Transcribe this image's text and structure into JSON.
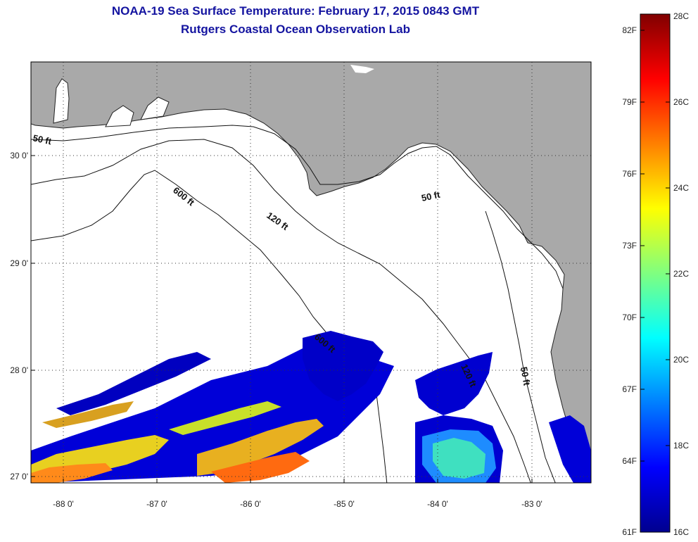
{
  "title": {
    "line1": "NOAA-19 Sea Surface Temperature:  February 17, 2015 0843 GMT",
    "line2": "Rutgers Coastal Ocean Observation Lab"
  },
  "map": {
    "longitude_ticks": [
      "-88 0'",
      "-87 0'",
      "-86 0'",
      "-85 0'",
      "-84 0'",
      "-83 0'"
    ],
    "latitude_ticks": [
      "30 0'",
      "29 0'",
      "28 0'",
      "27 0'"
    ],
    "land_color": "#a9a9a9",
    "no_data_color": "#ffffff",
    "isobath_labels": [
      "50 ft",
      "600 ft",
      "120 ft",
      "50 ft",
      "600 ft",
      "120 ft",
      "50 ft"
    ]
  },
  "colorbar": {
    "fahrenheit_labels": [
      "82F",
      "79F",
      "76F",
      "73F",
      "70F",
      "67F",
      "64F",
      "61F"
    ],
    "celsius_labels": [
      "28C",
      "26C",
      "24C",
      "22C",
      "20C",
      "18C",
      "16C"
    ],
    "colormap": [
      "#00008f",
      "#0000ff",
      "#00ffff",
      "#ffff00",
      "#ff0000",
      "#800000"
    ]
  }
}
